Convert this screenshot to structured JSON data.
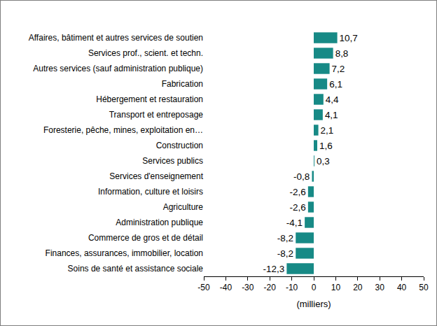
{
  "chart_data": {
    "type": "bar",
    "orientation": "horizontal",
    "x_label": "(milliers)",
    "categories": [
      "Affaires, bâtiment et autres services de soutien",
      "Services prof., scient. et techn.",
      "Autres services (sauf administration publique)",
      "Fabrication",
      "Hébergement et restauration",
      "Transport et entreposage",
      "Foresterie, pêche, mines, exploitation en…",
      "Construction",
      "Services publics",
      "Services d'enseignement",
      "Information, culture et loisirs",
      "Agriculture",
      "Administration publique",
      "Commerce de gros et de détail",
      "Finances, assurances, immobilier, location",
      "Soins de santé et assistance sociale"
    ],
    "values": [
      10.7,
      8.8,
      7.2,
      6.1,
      4.4,
      4.1,
      2.1,
      1.6,
      0.3,
      -0.8,
      -2.6,
      -2.6,
      -4.1,
      -8.2,
      -8.2,
      -12.3
    ],
    "value_labels": [
      "10,7",
      "8,8",
      "7,2",
      "6,1",
      "4,4",
      "4,1",
      "2,1",
      "1,6",
      "0,3",
      "-0,8",
      "-2,6",
      "-2,6",
      "-4,1",
      "-8,2",
      "-8,2",
      "-12,3"
    ],
    "data_labels": true,
    "color": "#178a86",
    "xlim": [
      -50,
      50
    ],
    "xticks": [
      -50,
      -40,
      -30,
      -20,
      -10,
      0,
      10,
      20,
      30,
      40,
      50
    ],
    "grid": false
  }
}
